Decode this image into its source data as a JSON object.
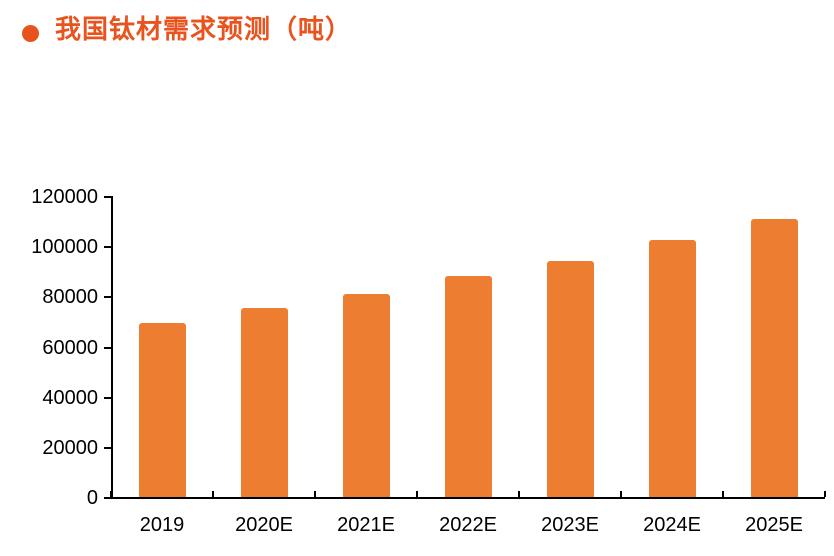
{
  "title": {
    "bullet_icon": "circle-bullet",
    "text": "我国钛材需求预测（吨）"
  },
  "colors": {
    "title": "#E9531D",
    "bullet": "#E8531D",
    "bar": "#ED7D31",
    "axis": "#000000",
    "background": "#FFFFFF"
  },
  "chart_data": {
    "type": "bar",
    "title": "我国钛材需求预测（吨）",
    "unit": "吨",
    "categories": [
      "2019",
      "2020E",
      "2021E",
      "2022E",
      "2023E",
      "2024E",
      "2025E"
    ],
    "values": [
      69500,
      75500,
      81000,
      88000,
      94000,
      102500,
      111000
    ],
    "xlabel": "",
    "ylabel": "",
    "ylim": [
      0,
      120000
    ],
    "yticks": [
      0,
      20000,
      40000,
      60000,
      80000,
      100000,
      120000
    ],
    "grid": false,
    "legend_position": "none",
    "bar_color": "#ED7D31"
  }
}
